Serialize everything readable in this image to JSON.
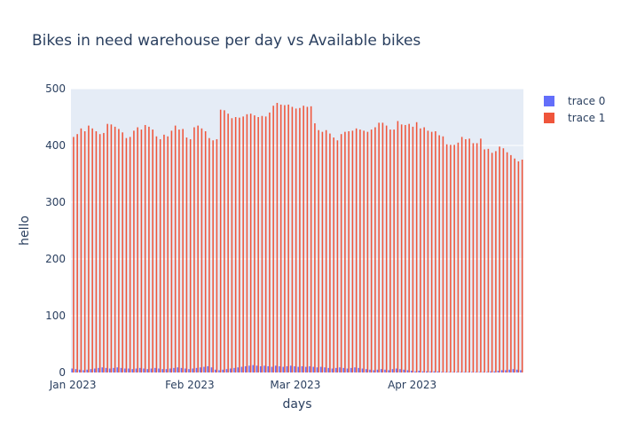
{
  "chart_data": {
    "type": "bar",
    "title": "Bikes in need warehouse per day vs Available bikes",
    "xlabel": "days",
    "ylabel": "hello",
    "ylim": [
      0,
      500
    ],
    "y_ticks": [
      0,
      100,
      200,
      300,
      400,
      500
    ],
    "x_start": "2023-01-01",
    "x_end": "2023-04-30",
    "x_ticks": [
      {
        "date": "2023-01-01",
        "label": "Jan 2023"
      },
      {
        "date": "2023-02-01",
        "label": "Feb 2023"
      },
      {
        "date": "2023-03-01",
        "label": "Mar 2023"
      },
      {
        "date": "2023-04-01",
        "label": "Apr 2023"
      }
    ],
    "legend_position": "top-right",
    "grid": true,
    "background_color": "#e5ecf6",
    "series": [
      {
        "name": "trace 0",
        "color": "#636efa",
        "values": [
          7,
          6,
          5,
          4,
          5,
          6,
          7,
          8,
          9,
          8,
          7,
          8,
          9,
          8,
          7,
          7,
          6,
          7,
          8,
          7,
          6,
          7,
          8,
          7,
          6,
          6,
          7,
          8,
          9,
          8,
          7,
          6,
          7,
          8,
          9,
          10,
          11,
          9,
          5,
          4,
          5,
          6,
          7,
          8,
          9,
          10,
          11,
          12,
          13,
          12,
          11,
          12,
          11,
          10,
          12,
          11,
          10,
          11,
          12,
          11,
          10,
          11,
          10,
          11,
          10,
          9,
          10,
          9,
          8,
          7,
          8,
          9,
          8,
          7,
          8,
          9,
          8,
          7,
          6,
          5,
          4,
          5,
          6,
          5,
          4,
          6,
          7,
          6,
          5,
          4,
          3,
          2,
          3,
          2,
          2,
          2,
          2,
          2,
          1,
          1,
          1,
          1,
          1,
          1,
          1,
          1,
          1,
          1,
          1,
          1,
          1,
          2,
          2,
          3,
          4,
          4,
          5,
          6,
          5,
          4
        ]
      },
      {
        "name": "trace 1",
        "color": "#ef553b",
        "values": [
          415,
          420,
          430,
          425,
          435,
          430,
          425,
          420,
          422,
          438,
          437,
          433,
          429,
          423,
          413,
          415,
          426,
          432,
          428,
          436,
          433,
          428,
          416,
          411,
          419,
          416,
          426,
          435,
          428,
          429,
          414,
          411,
          432,
          435,
          430,
          425,
          413,
          409,
          411,
          463,
          462,
          456,
          448,
          450,
          449,
          451,
          455,
          456,
          453,
          450,
          452,
          451,
          458,
          470,
          475,
          472,
          471,
          472,
          468,
          465,
          466,
          470,
          468,
          469,
          439,
          427,
          424,
          427,
          421,
          414,
          409,
          420,
          424,
          425,
          426,
          430,
          428,
          426,
          424,
          428,
          432,
          440,
          440,
          435,
          428,
          428,
          443,
          437,
          436,
          438,
          433,
          441,
          430,
          432,
          426,
          424,
          425,
          418,
          416,
          402,
          401,
          401,
          405,
          415,
          411,
          412,
          404,
          404,
          412,
          393,
          394,
          387,
          390,
          398,
          395,
          388,
          383,
          377,
          372,
          375
        ]
      }
    ]
  }
}
